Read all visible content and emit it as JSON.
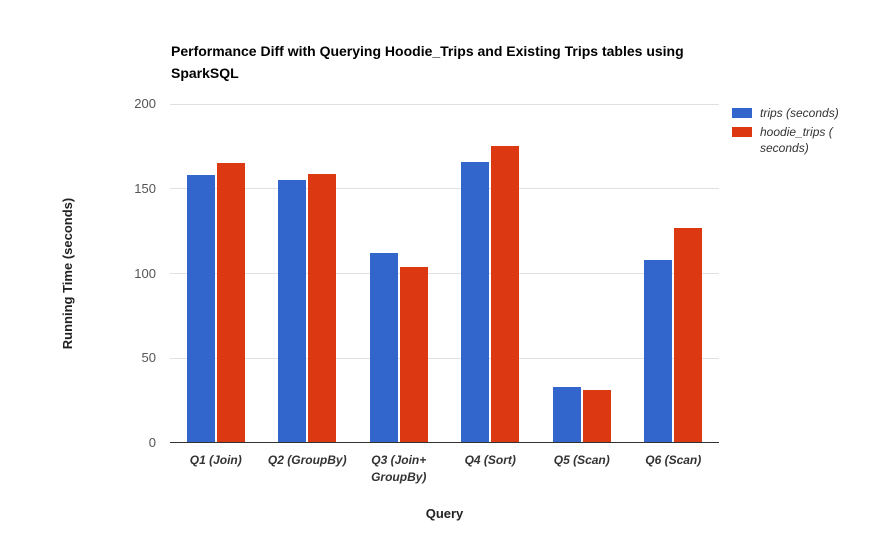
{
  "chart_data": {
    "type": "bar",
    "title": "Performance Diff with Querying Hoodie_Trips and Existing Trips tables using SparkSQL",
    "xlabel": "Query",
    "ylabel": "Running Time (seconds)",
    "categories": [
      "Q1 (Join)",
      "Q2 (GroupBy)",
      "Q3 (Join+ GroupBy)",
      "Q4 (Sort)",
      "Q5 (Scan)",
      "Q6 (Scan)"
    ],
    "series": [
      {
        "name": "trips (seconds)",
        "color": "#3366cc",
        "values": [
          158,
          155,
          112,
          166,
          33,
          108
        ]
      },
      {
        "name": "hoodie_trips ( seconds)",
        "color": "#dc3912",
        "values": [
          165,
          159,
          104,
          175,
          31,
          127
        ]
      }
    ],
    "ylim": [
      0,
      200
    ],
    "yticks": [
      0,
      50,
      100,
      150,
      200
    ],
    "grid": true,
    "legend_position": "right",
    "axis_color": "#333333",
    "gridline_color": "#e0e0e0",
    "background": "#ffffff"
  }
}
